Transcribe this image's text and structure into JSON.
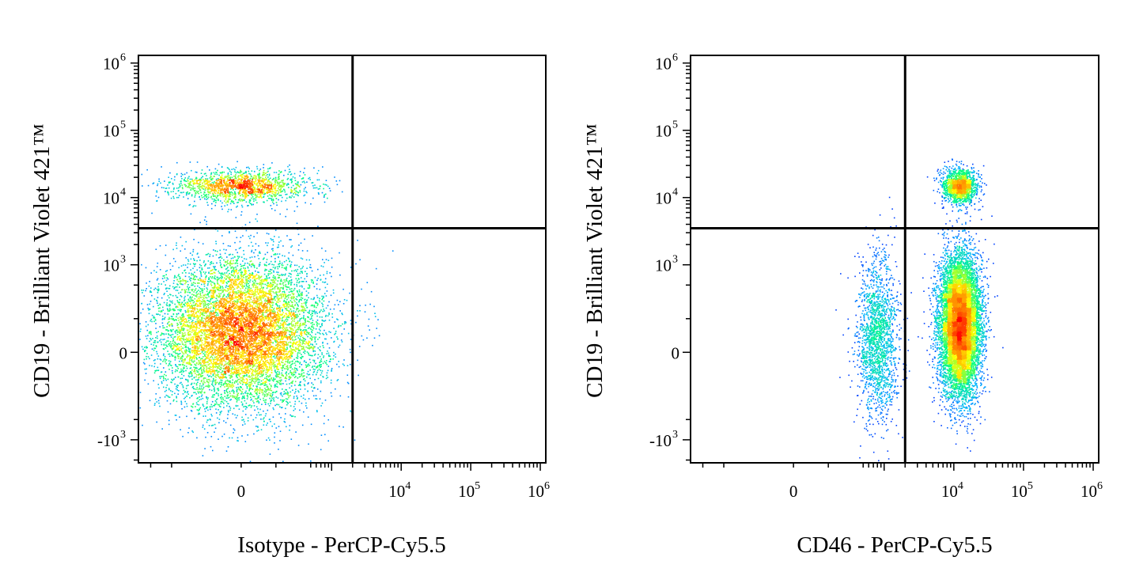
{
  "chart_data": [
    {
      "type": "scatter",
      "subtype": "flow-cytometry-density-dot-plot",
      "title": "",
      "xlabel": "Isotype - PerCP-Cy5.5",
      "ylabel": "CD19 - Brilliant Violet 421™",
      "x_scale": "biexponential",
      "y_scale": "biexponential",
      "xlim": [
        -1500,
        1200000
      ],
      "ylim": [
        -2200,
        1300000
      ],
      "x_ticks": [
        {
          "value": 0,
          "label": "0",
          "exp": ""
        },
        {
          "value": 10000,
          "label": "10",
          "exp": "4"
        },
        {
          "value": 100000,
          "label": "10",
          "exp": "5"
        },
        {
          "value": 1000000,
          "label": "10",
          "exp": "6"
        }
      ],
      "y_ticks": [
        {
          "value": 1000000,
          "label": "10",
          "exp": "6"
        },
        {
          "value": 100000,
          "label": "10",
          "exp": "5"
        },
        {
          "value": 10000,
          "label": "10",
          "exp": "4"
        },
        {
          "value": 1000,
          "label": "10",
          "exp": "3"
        },
        {
          "value": 0,
          "label": "0",
          "exp": ""
        },
        {
          "value": -1000,
          "label": "-10",
          "exp": "3"
        }
      ],
      "quadrant_gate": {
        "x": 2000,
        "y": 3500
      },
      "populations": [
        {
          "name": "",
          "x_center": 0,
          "y_center": 150,
          "x_spread": 500,
          "y_spread": 700,
          "count": 9000
        },
        {
          "name": "",
          "x_center": 0,
          "y_center": 15000,
          "x_spread": 400,
          "y_spread": 9000,
          "count": 1600
        }
      ],
      "grid": false,
      "legend": "none",
      "colormap": [
        "#0000ff",
        "#00b4ff",
        "#00ff80",
        "#ffff00",
        "#ff8000",
        "#ff0000"
      ]
    },
    {
      "type": "scatter",
      "subtype": "flow-cytometry-density-dot-plot",
      "title": "",
      "xlabel": "CD46 - PerCP-Cy5.5",
      "ylabel": "CD19 - Brilliant Violet 421™",
      "x_scale": "biexponential",
      "y_scale": "biexponential",
      "xlim": [
        -1500,
        1200000
      ],
      "ylim": [
        -2200,
        1300000
      ],
      "x_ticks": [
        {
          "value": 0,
          "label": "0",
          "exp": ""
        },
        {
          "value": 10000,
          "label": "10",
          "exp": "4"
        },
        {
          "value": 100000,
          "label": "10",
          "exp": "5"
        },
        {
          "value": 1000000,
          "label": "10",
          "exp": "6"
        }
      ],
      "y_ticks": [
        {
          "value": 1000000,
          "label": "10",
          "exp": "6"
        },
        {
          "value": 100000,
          "label": "10",
          "exp": "5"
        },
        {
          "value": 10000,
          "label": "10",
          "exp": "4"
        },
        {
          "value": 1000,
          "label": "10",
          "exp": "3"
        },
        {
          "value": 0,
          "label": "0",
          "exp": ""
        },
        {
          "value": -1000,
          "label": "-10",
          "exp": "3"
        }
      ],
      "quadrant_gate": {
        "x": 2000,
        "y": 3500
      },
      "populations": [
        {
          "name": "",
          "x_center": 12000,
          "y_center": 200,
          "x_spread": 9000,
          "y_spread": 700,
          "count": 10000
        },
        {
          "name": "",
          "x_center": 12000,
          "y_center": 15000,
          "x_spread": 7000,
          "y_spread": 9000,
          "count": 1600
        },
        {
          "name": "",
          "x_center": 800,
          "y_center": 100,
          "x_spread": 600,
          "y_spread": 700,
          "count": 1800
        }
      ],
      "grid": false,
      "legend": "none",
      "colormap": [
        "#0000ff",
        "#00b4ff",
        "#00ff80",
        "#ffff00",
        "#ff8000",
        "#ff0000"
      ]
    }
  ]
}
